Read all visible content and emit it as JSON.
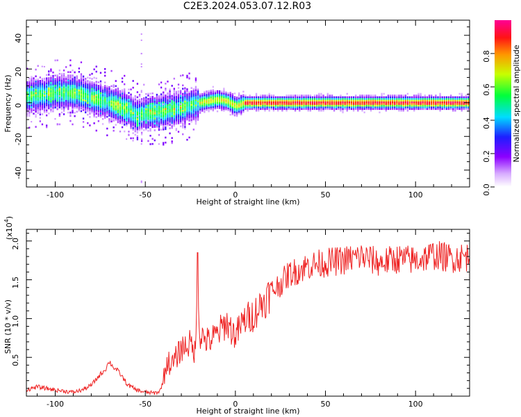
{
  "title": "C2E3.2024.053.07.12.R03",
  "chart_data": [
    {
      "type": "heatmap",
      "xlabel": "Height of straight line (km)",
      "ylabel": "Frequency (Hz)",
      "xlim": [
        -116,
        130
      ],
      "ylim": [
        -50,
        49
      ],
      "xticks": [
        -100,
        -50,
        0,
        50,
        100
      ],
      "yticks": [
        -40,
        -20,
        0,
        20,
        40
      ],
      "colorbar": {
        "label": "Normalized spectral amplitude",
        "range": [
          0,
          1
        ],
        "ticks": [
          0.0,
          0.2,
          0.4,
          0.6,
          0.8
        ]
      },
      "ridge": {
        "x": [
          -115,
          -100,
          -90,
          -80,
          -70,
          -60,
          -55,
          -50,
          -40,
          -30,
          -20,
          -10,
          -5,
          0,
          5,
          10,
          50,
          100,
          130
        ],
        "frequency": [
          4,
          6,
          6,
          3,
          0,
          -4,
          -8,
          -6,
          -5,
          -3,
          0,
          2,
          1,
          -2,
          0,
          0,
          0,
          0,
          0
        ]
      }
    },
    {
      "type": "line",
      "xlabel": "Height of straight line (km)",
      "ylabel": "SNR (10 * v/v)",
      "multiplier_label": "(x10",
      "multiplier_exponent": "4",
      "xlim": [
        -116,
        130
      ],
      "ylim": [
        0,
        2.15
      ],
      "xticks": [
        -100,
        -50,
        0,
        50,
        100
      ],
      "yticks": [
        0.5,
        1.0,
        1.5,
        2.0
      ],
      "ytick_labels": [
        "0.5",
        "1.0",
        "1.5",
        "2.0"
      ],
      "series": [
        {
          "color": "#ee2222",
          "x": [
            -116,
            -110,
            -100,
            -90,
            -85,
            -80,
            -75,
            -72,
            -70,
            -68,
            -65,
            -62,
            -60,
            -55,
            -50,
            -45,
            -42,
            -40,
            -38,
            -35,
            -30,
            -25,
            -22,
            -21,
            -20,
            -15,
            -10,
            -5,
            0,
            5,
            10,
            15,
            20,
            25,
            30,
            35,
            40,
            50,
            60,
            70,
            80,
            90,
            100,
            110,
            120,
            130
          ],
          "y": [
            0.08,
            0.12,
            0.08,
            0.05,
            0.08,
            0.14,
            0.28,
            0.35,
            0.45,
            0.38,
            0.32,
            0.22,
            0.15,
            0.08,
            0.05,
            0.04,
            0.06,
            0.2,
            0.45,
            0.4,
            0.62,
            0.68,
            0.55,
            1.85,
            0.8,
            0.7,
            0.8,
            0.95,
            0.78,
            0.98,
            1.05,
            1.2,
            1.35,
            1.45,
            1.58,
            1.62,
            1.68,
            1.72,
            1.75,
            1.8,
            1.72,
            1.77,
            1.75,
            1.82,
            1.78,
            1.8
          ]
        }
      ]
    }
  ]
}
